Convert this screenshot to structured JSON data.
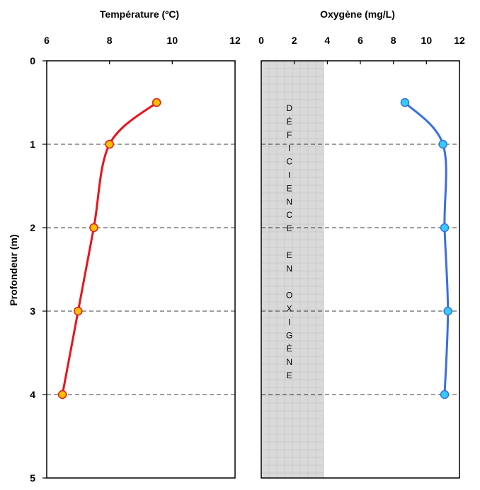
{
  "chart_data": [
    {
      "type": "line",
      "title": "Température (ºC)",
      "ylabel": "Profondeur (m)",
      "x_ticks": [
        "6",
        "8",
        "10",
        "12"
      ],
      "xlim": [
        6,
        12
      ],
      "y_ticks": [
        "0",
        "1",
        "2",
        "3",
        "4",
        "5"
      ],
      "ylim": [
        0,
        5
      ],
      "y_inverted": true,
      "grid": "horizontal dashed at depths 1-4",
      "series": [
        {
          "color": "#e8141b",
          "marker_color": "#ffc000",
          "points": [
            {
              "x": 9.5,
              "y": 0.5
            },
            {
              "x": 8.0,
              "y": 1.0
            },
            {
              "x": 7.5,
              "y": 2.0
            },
            {
              "x": 7.0,
              "y": 3.0
            },
            {
              "x": 6.5,
              "y": 4.0
            }
          ]
        }
      ]
    },
    {
      "type": "line",
      "title": "Oxygène (mg/L)",
      "x_ticks": [
        "0",
        "2",
        "4",
        "6",
        "8",
        "10",
        "12"
      ],
      "xlim": [
        0,
        12
      ],
      "ylim": [
        0,
        5
      ],
      "y_inverted": true,
      "grid": "horizontal dashed at depths 1-4",
      "shaded_band": {
        "x_from": 0,
        "x_to": 3.8,
        "color": "#d9d9d9",
        "label_letters": [
          "D",
          "É",
          "F",
          "I",
          "C",
          "I",
          "E",
          "N",
          "C",
          "E",
          "",
          "E",
          "N",
          "",
          "O",
          "X",
          "I",
          "G",
          "È",
          "N",
          "E"
        ]
      },
      "series": [
        {
          "color": "#3a6fe0",
          "marker_color": "#33ccff",
          "points": [
            {
              "x": 8.7,
              "y": 0.5
            },
            {
              "x": 11.0,
              "y": 1.0
            },
            {
              "x": 11.1,
              "y": 2.0
            },
            {
              "x": 11.3,
              "y": 3.0
            },
            {
              "x": 11.1,
              "y": 4.0
            }
          ]
        }
      ]
    }
  ]
}
